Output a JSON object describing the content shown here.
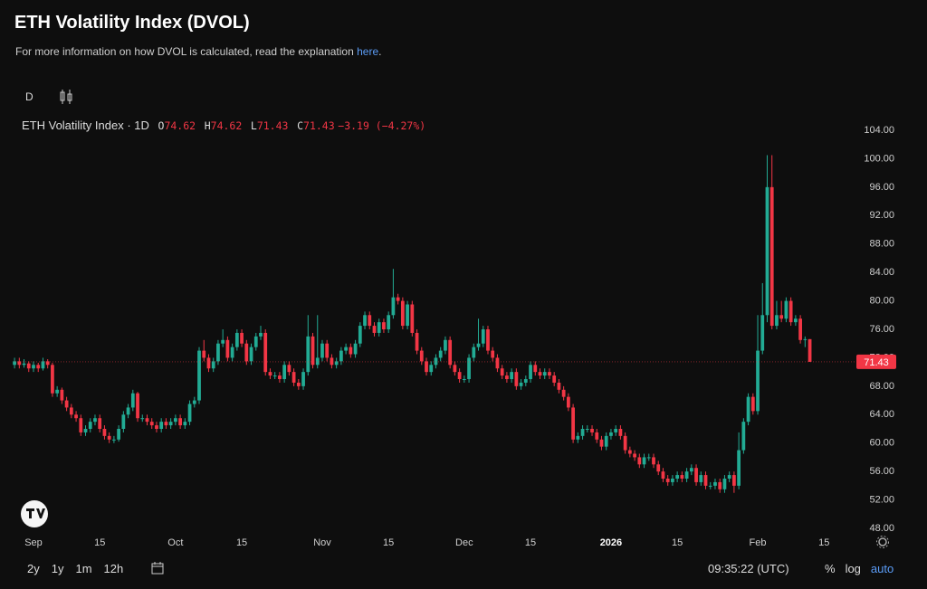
{
  "ui": {
    "title": "ETH Volatility Index (DVOL)",
    "subtitle_text": "For more information on how DVOL is calculated, read the explanation ",
    "subtitle_link": "here",
    "subtitle_end": ".",
    "interval": "D",
    "legend_name": "ETH Volatility Index · 1D",
    "legend_o": "O",
    "legend_h": "H",
    "legend_l": "L",
    "legend_c": "C",
    "legend_change": "−3.19 (−4.27%)",
    "ranges": [
      "2y",
      "1y",
      "1m",
      "12h"
    ],
    "clock": "09:35:22 (UTC)",
    "scale_buttons": [
      "%",
      "log",
      "auto"
    ]
  },
  "chart_data": {
    "type": "candlestick",
    "up_color": "#22ab94",
    "down_color": "#f23645",
    "ylim": [
      48,
      104
    ],
    "yticks": [
      {
        "value": 48,
        "label": "48.00"
      },
      {
        "value": 52,
        "label": "52.00"
      },
      {
        "value": 56,
        "label": "56.00"
      },
      {
        "value": 60,
        "label": "60.00"
      },
      {
        "value": 64,
        "label": "64.00"
      },
      {
        "value": 68,
        "label": "68.00"
      },
      {
        "value": 72,
        "label": "72.00"
      },
      {
        "value": 76,
        "label": "76.00"
      },
      {
        "value": 80,
        "label": "80.00"
      },
      {
        "value": 84,
        "label": "84.00"
      },
      {
        "value": 88,
        "label": "88.00"
      },
      {
        "value": 92,
        "label": "92.00"
      },
      {
        "value": 96,
        "label": "96.00"
      },
      {
        "value": 100,
        "label": "100.00"
      },
      {
        "value": 104,
        "label": "104.00"
      }
    ],
    "xticks": [
      {
        "value": 4,
        "label": "Sep"
      },
      {
        "value": 18,
        "label": "15"
      },
      {
        "value": 34,
        "label": "Oct"
      },
      {
        "value": 48,
        "label": "15"
      },
      {
        "value": 65,
        "label": "Nov"
      },
      {
        "value": 79,
        "label": "15"
      },
      {
        "value": 95,
        "label": "Dec"
      },
      {
        "value": 109,
        "label": "15"
      },
      {
        "value": 126,
        "label": "2026"
      },
      {
        "value": 140,
        "label": "15"
      },
      {
        "value": 157,
        "label": "Feb"
      },
      {
        "value": 171,
        "label": "15"
      }
    ],
    "ohlc": [
      [
        71,
        72,
        70.5,
        71.5
      ],
      [
        71.5,
        72,
        70.5,
        71
      ],
      [
        71,
        71.8,
        70.6,
        71.2
      ],
      [
        71.2,
        71.5,
        70,
        70.5
      ],
      [
        70.5,
        71.5,
        70,
        71
      ],
      [
        71,
        71.3,
        70,
        70.5
      ],
      [
        70.5,
        72,
        70.2,
        71.5
      ],
      [
        71.5,
        71.8,
        70.5,
        71
      ],
      [
        71,
        71.3,
        66.5,
        67
      ],
      [
        67,
        68,
        66.5,
        67.5
      ],
      [
        67.5,
        67.8,
        65.5,
        66
      ],
      [
        66,
        66.5,
        64.5,
        65
      ],
      [
        65,
        65.5,
        63.5,
        64
      ],
      [
        64,
        64.5,
        63,
        63.5
      ],
      [
        63.5,
        64,
        61,
        61.5
      ],
      [
        61.5,
        62.5,
        61,
        62
      ],
      [
        62,
        63.5,
        61.5,
        63
      ],
      [
        63,
        64,
        62.5,
        63.5
      ],
      [
        63.5,
        64,
        61.5,
        62
      ],
      [
        62,
        62.5,
        60.5,
        61
      ],
      [
        61,
        61.5,
        60,
        60.5
      ],
      [
        60.5,
        61,
        60,
        60.5
      ],
      [
        60.5,
        62.5,
        60.2,
        62
      ],
      [
        62,
        64.5,
        61.5,
        64
      ],
      [
        64,
        65.5,
        63.5,
        65
      ],
      [
        65,
        67.5,
        64.5,
        67
      ],
      [
        67,
        67.2,
        63,
        63.5
      ],
      [
        63.5,
        64,
        63,
        63.5
      ],
      [
        63.5,
        64,
        62.5,
        63
      ],
      [
        63,
        63.5,
        62,
        62.5
      ],
      [
        62.5,
        63,
        61.5,
        62
      ],
      [
        62,
        63.5,
        61.5,
        63
      ],
      [
        63,
        63.5,
        62,
        62.5
      ],
      [
        62.5,
        63.5,
        62,
        63
      ],
      [
        63,
        64,
        62.5,
        63.5
      ],
      [
        63.5,
        64,
        62,
        62.5
      ],
      [
        62.5,
        63.5,
        62,
        63
      ],
      [
        63,
        66,
        62.5,
        65.5
      ],
      [
        65.5,
        66.5,
        65,
        66
      ],
      [
        66,
        73.5,
        65.5,
        73
      ],
      [
        73,
        74.5,
        71.5,
        72
      ],
      [
        72,
        72.5,
        70,
        70.5
      ],
      [
        70.5,
        72,
        70,
        71.5
      ],
      [
        71.5,
        74.5,
        71,
        74
      ],
      [
        74,
        76,
        73.5,
        74.5
      ],
      [
        74.5,
        75,
        71.5,
        72
      ],
      [
        72,
        74,
        71.5,
        73.5
      ],
      [
        73.5,
        76,
        73,
        75.5
      ],
      [
        75.5,
        76,
        73.5,
        74
      ],
      [
        74,
        74.5,
        71,
        71.5
      ],
      [
        71.5,
        74,
        71,
        73.5
      ],
      [
        73.5,
        75.5,
        73,
        75
      ],
      [
        75,
        76.5,
        74.5,
        75.5
      ],
      [
        75.5,
        76,
        69.5,
        70
      ],
      [
        70,
        70.5,
        69,
        69.5
      ],
      [
        69.5,
        70,
        69,
        69.5
      ],
      [
        69.5,
        70,
        68.5,
        69
      ],
      [
        69,
        71.5,
        68.5,
        71
      ],
      [
        71,
        71.5,
        69.5,
        70
      ],
      [
        70,
        70.5,
        68,
        68.5
      ],
      [
        68.5,
        69,
        67.5,
        68
      ],
      [
        68,
        70.5,
        67.5,
        70
      ],
      [
        70,
        78,
        69.5,
        75
      ],
      [
        75,
        75.5,
        70.5,
        71
      ],
      [
        71,
        78,
        70.5,
        72
      ],
      [
        72,
        74.5,
        71.5,
        74
      ],
      [
        74,
        74.5,
        71.5,
        72
      ],
      [
        72,
        72.5,
        70.5,
        71
      ],
      [
        71,
        72,
        70.5,
        71.5
      ],
      [
        71.5,
        73.5,
        71,
        73
      ],
      [
        73,
        74,
        72.5,
        73.5
      ],
      [
        73.5,
        74,
        72,
        72.5
      ],
      [
        72.5,
        74.5,
        72,
        74
      ],
      [
        74,
        77,
        73.5,
        76.5
      ],
      [
        76.5,
        78.5,
        76,
        78
      ],
      [
        78,
        78.5,
        76,
        76.5
      ],
      [
        76.5,
        77,
        75,
        75.5
      ],
      [
        75.5,
        77.5,
        75,
        77
      ],
      [
        77,
        77.5,
        75.5,
        76
      ],
      [
        76,
        78.5,
        75.5,
        78
      ],
      [
        78,
        84.5,
        77.5,
        80.5
      ],
      [
        80.5,
        81,
        79.5,
        80
      ],
      [
        80,
        80.5,
        76,
        76.5
      ],
      [
        76.5,
        80,
        76,
        79.5
      ],
      [
        79.5,
        80,
        75,
        75.5
      ],
      [
        75.5,
        76,
        72.5,
        73
      ],
      [
        73,
        73.5,
        71,
        71.5
      ],
      [
        71.5,
        72,
        69.5,
        70
      ],
      [
        70,
        71.5,
        69.5,
        71
      ],
      [
        71,
        72.5,
        70.5,
        72
      ],
      [
        72,
        73.5,
        71.5,
        73
      ],
      [
        73,
        75,
        72.5,
        74.5
      ],
      [
        74.5,
        75,
        70.5,
        71
      ],
      [
        71,
        71.5,
        69.5,
        70
      ],
      [
        70,
        70.5,
        68.5,
        69
      ],
      [
        69,
        69.5,
        68.5,
        69
      ],
      [
        69,
        72.5,
        68.5,
        72
      ],
      [
        72,
        74,
        71.5,
        73.5
      ],
      [
        73.5,
        77.5,
        73,
        74
      ],
      [
        74,
        76.5,
        73.5,
        76
      ],
      [
        76,
        76.5,
        72.5,
        73
      ],
      [
        73,
        73.5,
        71.5,
        72
      ],
      [
        72,
        72.5,
        70,
        70.5
      ],
      [
        70.5,
        71,
        69,
        69.5
      ],
      [
        69.5,
        70,
        68.5,
        69
      ],
      [
        69,
        70.5,
        68.5,
        70
      ],
      [
        70,
        70.5,
        67.5,
        68
      ],
      [
        68,
        69,
        67.5,
        68.5
      ],
      [
        68.5,
        69.5,
        68,
        69
      ],
      [
        69,
        71.5,
        68.5,
        71
      ],
      [
        71,
        71.5,
        69.5,
        70
      ],
      [
        70,
        70.5,
        69,
        69.5
      ],
      [
        69.5,
        70.5,
        69,
        70
      ],
      [
        70,
        70.5,
        69,
        69.5
      ],
      [
        69.5,
        70,
        68,
        68.5
      ],
      [
        68.5,
        69,
        67,
        67.5
      ],
      [
        67.5,
        68,
        66,
        66.5
      ],
      [
        66.5,
        67,
        64.5,
        65
      ],
      [
        65,
        65.5,
        60,
        60.5
      ],
      [
        60.5,
        61.5,
        60,
        61
      ],
      [
        61,
        62.5,
        60.5,
        62
      ],
      [
        62,
        62.5,
        61.5,
        62
      ],
      [
        62,
        62.5,
        61,
        61.5
      ],
      [
        61.5,
        62,
        60,
        60.5
      ],
      [
        60.5,
        61,
        59,
        59.5
      ],
      [
        59.5,
        61.5,
        59,
        61
      ],
      [
        61,
        62,
        60.5,
        61.5
      ],
      [
        61.5,
        62.5,
        61,
        62
      ],
      [
        62,
        62.5,
        60.5,
        61
      ],
      [
        61,
        61.5,
        58.5,
        59
      ],
      [
        59,
        59.5,
        58,
        58.5
      ],
      [
        58.5,
        59,
        57.5,
        58
      ],
      [
        58,
        58.5,
        56.5,
        57
      ],
      [
        57,
        58.5,
        56.5,
        58
      ],
      [
        58,
        58.5,
        57.5,
        58
      ],
      [
        58,
        58.5,
        56.5,
        57
      ],
      [
        57,
        57.5,
        55.5,
        56
      ],
      [
        56,
        56.5,
        54.5,
        55
      ],
      [
        55,
        55.5,
        54,
        54.5
      ],
      [
        54.5,
        55.5,
        54,
        55
      ],
      [
        55,
        56,
        54.5,
        55.5
      ],
      [
        55.5,
        56,
        54.5,
        55
      ],
      [
        55,
        56.5,
        54.5,
        56
      ],
      [
        56,
        57,
        55.5,
        56.5
      ],
      [
        56.5,
        57,
        54,
        54.5
      ],
      [
        54.5,
        56,
        54,
        55.5
      ],
      [
        55.5,
        56,
        53.5,
        54
      ],
      [
        54,
        54.5,
        53.5,
        54
      ],
      [
        54,
        55,
        53.5,
        54.5
      ],
      [
        54.5,
        55,
        53,
        53.5
      ],
      [
        53.5,
        55.5,
        53,
        55
      ],
      [
        55,
        56,
        54.5,
        55.5
      ],
      [
        55.5,
        56,
        53,
        54
      ],
      [
        54,
        61.5,
        53.5,
        59
      ],
      [
        59,
        63.5,
        58.5,
        63
      ],
      [
        63,
        67,
        62.5,
        66.5
      ],
      [
        66.5,
        67,
        64,
        64.5
      ],
      [
        64.5,
        78,
        64,
        73
      ],
      [
        73,
        82.5,
        72.5,
        78
      ],
      [
        78,
        100.5,
        77,
        96
      ],
      [
        96,
        100.5,
        76,
        76.5
      ],
      [
        76.5,
        80,
        76,
        78
      ],
      [
        78,
        80,
        77,
        77.5
      ],
      [
        77.5,
        80.5,
        77,
        80
      ],
      [
        80,
        80.5,
        76.5,
        77
      ],
      [
        77,
        78,
        76.5,
        77.5
      ],
      [
        77.5,
        78,
        74,
        74.5
      ],
      [
        74.5,
        75,
        73.5,
        74.62
      ],
      [
        74.62,
        74.62,
        71.43,
        71.43
      ]
    ]
  }
}
